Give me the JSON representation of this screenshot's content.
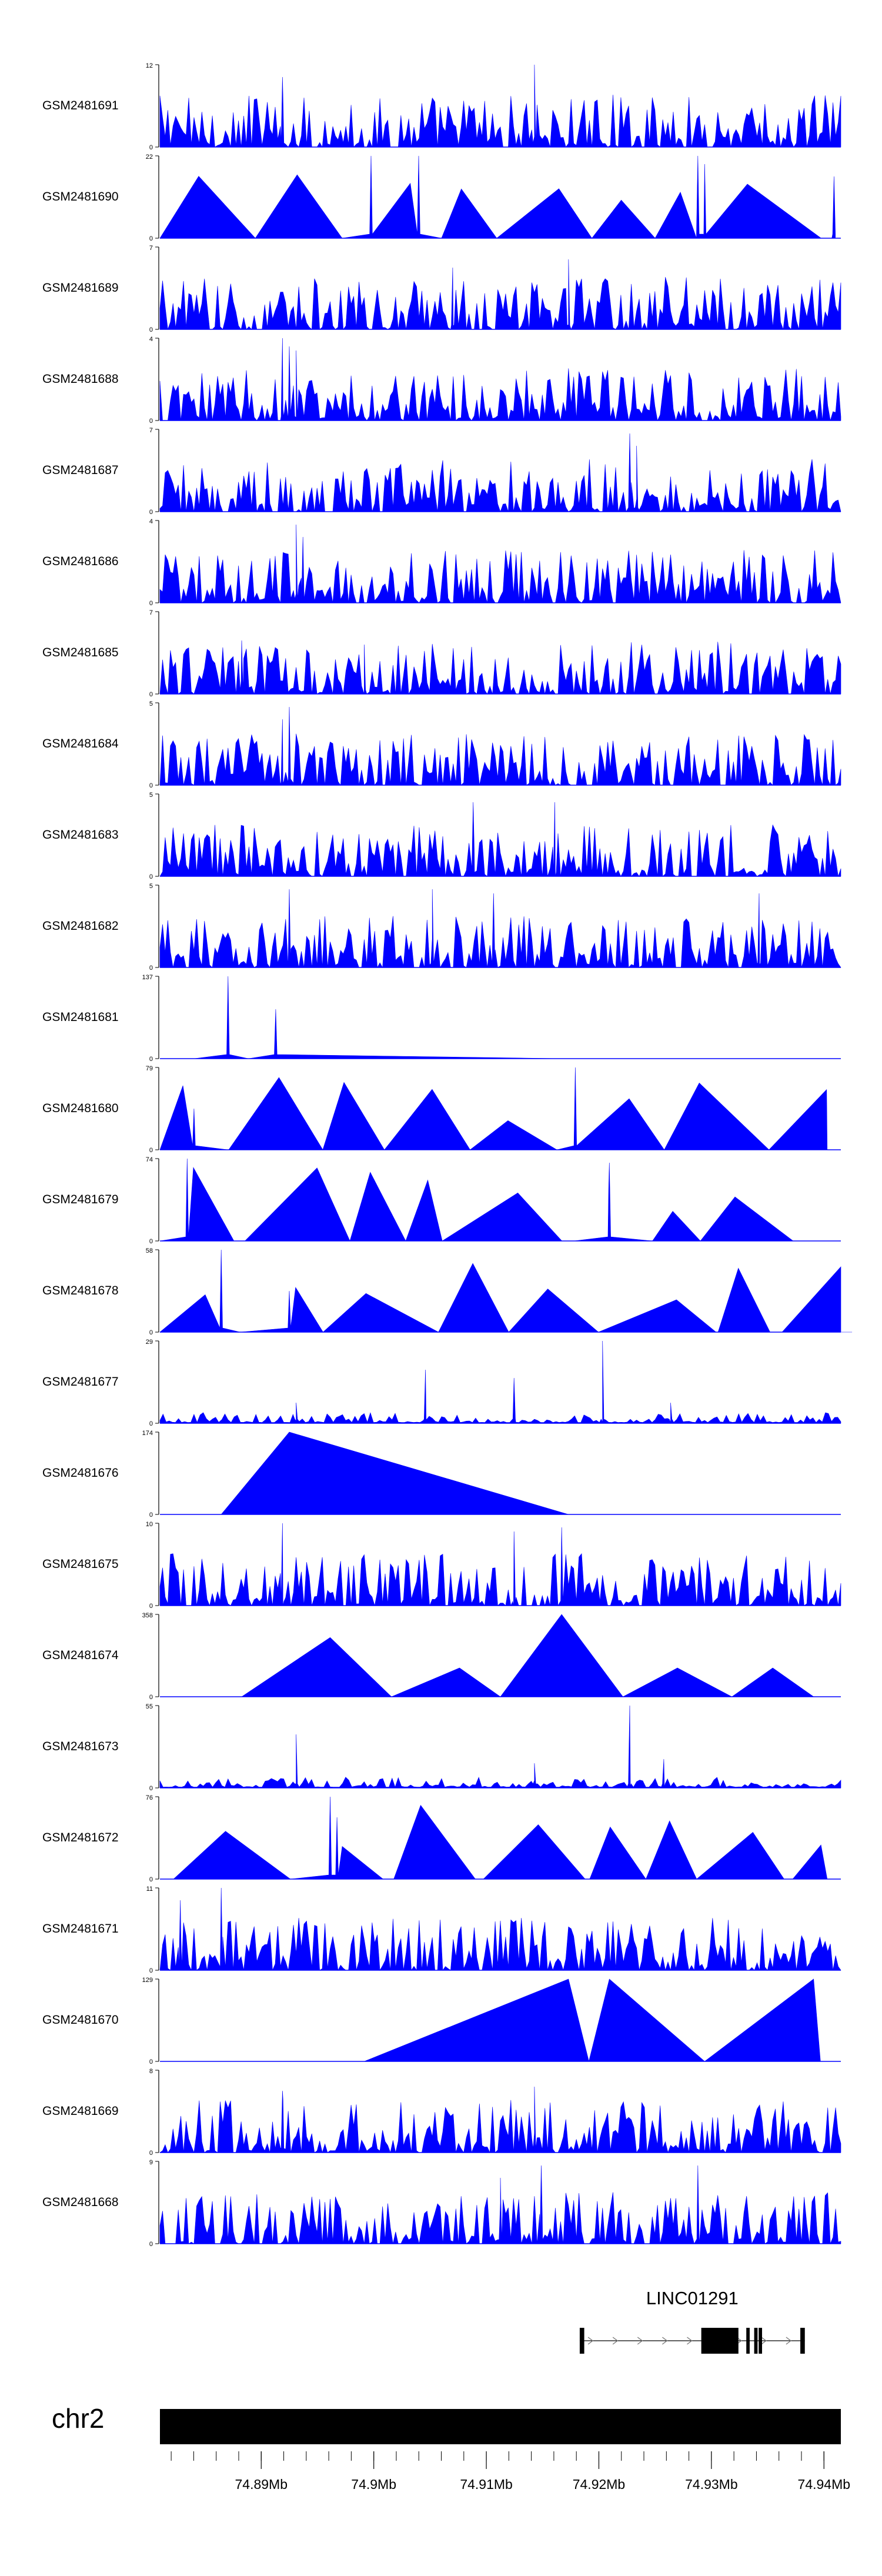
{
  "chart_data": {
    "type": "area",
    "title": "",
    "series_color": "#0000ff",
    "tracks": [
      {
        "name": "GSM2481691",
        "ymax": 12,
        "ymin": 0,
        "style": "dense",
        "extent": [
          0.0,
          1.0
        ],
        "spikes": [
          [
            0.18,
            0.85
          ],
          [
            0.55,
            1.0
          ]
        ]
      },
      {
        "name": "GSM2481690",
        "ymax": 22,
        "ymin": 0,
        "style": "triangles",
        "extent": [
          0.0,
          1.0
        ],
        "spikes": [
          [
            0.31,
            1.0
          ],
          [
            0.38,
            1.0
          ],
          [
            0.79,
            1.0
          ],
          [
            0.8,
            0.9
          ],
          [
            0.99,
            0.75
          ]
        ]
      },
      {
        "name": "GSM2481689",
        "ymax": 7,
        "ymin": 0,
        "style": "dense",
        "extent": [
          0.0,
          1.0
        ],
        "spikes": [
          [
            0.6,
            0.85
          ],
          [
            0.43,
            0.75
          ]
        ]
      },
      {
        "name": "GSM2481688",
        "ymax": 4,
        "ymin": 0,
        "style": "dense",
        "extent": [
          0.0,
          1.0
        ],
        "spikes": [
          [
            0.18,
            1.0
          ],
          [
            0.19,
            0.9
          ],
          [
            0.2,
            0.85
          ]
        ]
      },
      {
        "name": "GSM2481687",
        "ymax": 7,
        "ymin": 0,
        "style": "dense",
        "extent": [
          0.0,
          1.0
        ],
        "spikes": [
          [
            0.69,
            0.95
          ],
          [
            0.7,
            0.8
          ]
        ]
      },
      {
        "name": "GSM2481686",
        "ymax": 4,
        "ymin": 0,
        "style": "dense",
        "extent": [
          0.0,
          1.0
        ],
        "spikes": [
          [
            0.2,
            0.95
          ],
          [
            0.21,
            0.8
          ]
        ]
      },
      {
        "name": "GSM2481685",
        "ymax": 7,
        "ymin": 0,
        "style": "dense",
        "extent": [
          0.0,
          1.0
        ],
        "spikes": [
          [
            0.12,
            0.65
          ],
          [
            0.3,
            0.6
          ]
        ]
      },
      {
        "name": "GSM2481684",
        "ymax": 5,
        "ymin": 0,
        "style": "dense",
        "extent": [
          0.0,
          1.0
        ],
        "spikes": [
          [
            0.19,
            0.95
          ],
          [
            0.18,
            0.8
          ]
        ]
      },
      {
        "name": "GSM2481683",
        "ymax": 5,
        "ymin": 0,
        "style": "dense",
        "extent": [
          0.0,
          1.0
        ],
        "spikes": [
          [
            0.46,
            0.9
          ],
          [
            0.58,
            0.9
          ]
        ]
      },
      {
        "name": "GSM2481682",
        "ymax": 5,
        "ymin": 0,
        "style": "dense",
        "extent": [
          0.0,
          1.0
        ],
        "spikes": [
          [
            0.19,
            0.95
          ],
          [
            0.4,
            0.95
          ],
          [
            0.49,
            0.9
          ],
          [
            0.88,
            0.9
          ]
        ]
      },
      {
        "name": "GSM2481681",
        "ymax": 137,
        "ymin": 0,
        "style": "triangles",
        "extent": [
          0.05,
          0.59
        ],
        "spikes": [
          [
            0.1,
            1.0
          ],
          [
            0.17,
            0.6
          ]
        ]
      },
      {
        "name": "GSM2481680",
        "ymax": 79,
        "ymin": 0,
        "style": "triangles",
        "extent": [
          0.0,
          0.98
        ],
        "spikes": [
          [
            0.61,
            1.0
          ],
          [
            0.05,
            0.5
          ]
        ]
      },
      {
        "name": "GSM2481679",
        "ymax": 74,
        "ymin": 0,
        "style": "triangles",
        "extent": [
          0.0,
          0.93
        ],
        "spikes": [
          [
            0.04,
            1.0
          ],
          [
            0.66,
            0.95
          ]
        ]
      },
      {
        "name": "GSM2481678",
        "ymax": 58,
        "ymin": 0,
        "style": "triangles",
        "extent": [
          0.0,
          1.0
        ],
        "spikes": [
          [
            0.09,
            1.0
          ],
          [
            0.19,
            0.5
          ]
        ]
      },
      {
        "name": "GSM2481677",
        "ymax": 29,
        "ymin": 0,
        "style": "sparse",
        "extent": [
          0.0,
          1.0
        ],
        "spikes": [
          [
            0.65,
            1.0
          ],
          [
            0.39,
            0.65
          ],
          [
            0.52,
            0.55
          ],
          [
            0.2,
            0.25
          ],
          [
            0.75,
            0.25
          ]
        ]
      },
      {
        "name": "GSM2481676",
        "ymax": 174,
        "ymin": 0,
        "style": "triangles",
        "extent": [
          0.09,
          0.6
        ],
        "spikes": []
      },
      {
        "name": "GSM2481675",
        "ymax": 10,
        "ymin": 0,
        "style": "dense",
        "extent": [
          0.0,
          1.0
        ],
        "spikes": [
          [
            0.18,
            1.0
          ],
          [
            0.59,
            0.95
          ],
          [
            0.52,
            0.9
          ]
        ]
      },
      {
        "name": "GSM2481674",
        "ymax": 358,
        "ymin": 0,
        "style": "triangles",
        "extent": [
          0.12,
          0.96
        ],
        "spikes": []
      },
      {
        "name": "GSM2481673",
        "ymax": 55,
        "ymin": 0,
        "style": "sparse",
        "extent": [
          0.0,
          1.0
        ],
        "spikes": [
          [
            0.69,
            1.0
          ],
          [
            0.2,
            0.65
          ],
          [
            0.74,
            0.35
          ],
          [
            0.55,
            0.3
          ]
        ]
      },
      {
        "name": "GSM2481672",
        "ymax": 76,
        "ymin": 0,
        "style": "triangles",
        "extent": [
          0.02,
          0.98
        ],
        "spikes": [
          [
            0.25,
            1.0
          ],
          [
            0.26,
            0.75
          ]
        ]
      },
      {
        "name": "GSM2481671",
        "ymax": 11,
        "ymin": 0,
        "style": "dense",
        "extent": [
          0.0,
          1.0
        ],
        "spikes": [
          [
            0.09,
            1.0
          ],
          [
            0.03,
            0.85
          ]
        ]
      },
      {
        "name": "GSM2481670",
        "ymax": 129,
        "ymin": 0,
        "style": "triangles",
        "extent": [
          0.3,
          0.97
        ],
        "spikes": []
      },
      {
        "name": "GSM2481669",
        "ymax": 8,
        "ymin": 0,
        "style": "dense",
        "extent": [
          0.0,
          1.0
        ],
        "spikes": [
          [
            0.18,
            0.75
          ],
          [
            0.55,
            0.8
          ]
        ]
      },
      {
        "name": "GSM2481668",
        "ymax": 9,
        "ymin": 0,
        "style": "dense",
        "extent": [
          0.0,
          1.0
        ],
        "spikes": [
          [
            0.56,
            0.95
          ],
          [
            0.79,
            0.95
          ],
          [
            0.5,
            0.8
          ]
        ]
      }
    ],
    "gene": {
      "name": "LINC01291",
      "start": 74.9183,
      "end": 74.9383,
      "exons": [
        [
          74.9183,
          74.9187
        ],
        [
          74.9291,
          74.9324
        ],
        [
          74.9331,
          74.9334
        ],
        [
          74.9338,
          74.9341
        ],
        [
          74.9342,
          74.9345
        ],
        [
          74.9379,
          74.9383
        ]
      ],
      "strand": "+"
    },
    "axis": {
      "chromosome": "chr2",
      "range": [
        74.881,
        74.9415
      ],
      "major_ticks": [
        74.89,
        74.9,
        74.91,
        74.92,
        74.93,
        74.94
      ],
      "tick_labels": [
        "74.89Mb",
        "74.9Mb",
        "74.91Mb",
        "74.92Mb",
        "74.93Mb",
        "74.94Mb"
      ],
      "minor_step": 0.002
    }
  }
}
